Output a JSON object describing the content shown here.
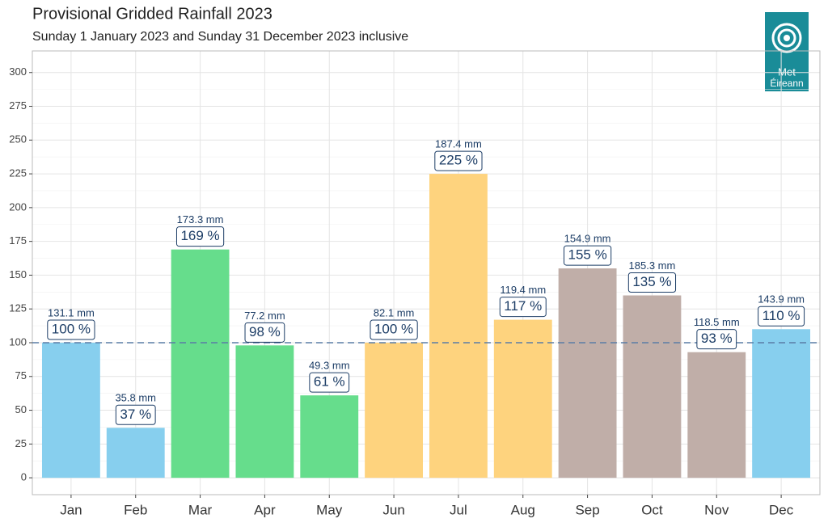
{
  "chart_data": {
    "type": "bar",
    "title": "Provisional Gridded Rainfall 2023",
    "subtitle": "Sunday 1 January 2023 and Sunday 31 December 2023 inclusive",
    "categories": [
      "Jan",
      "Feb",
      "Mar",
      "Apr",
      "May",
      "Jun",
      "Jul",
      "Aug",
      "Sep",
      "Oct",
      "Nov",
      "Dec"
    ],
    "values": [
      100,
      37,
      169,
      98,
      61,
      100,
      225,
      117,
      155,
      135,
      93,
      110
    ],
    "value_labels": [
      "100 %",
      "37 %",
      "169 %",
      "98 %",
      "61 %",
      "100 %",
      "225 %",
      "117 %",
      "155 %",
      "135 %",
      "93 %",
      "110 %"
    ],
    "rainfall_values": [
      131.1,
      35.8,
      173.3,
      77.2,
      49.3,
      82.1,
      187.4,
      119.4,
      154.9,
      185.3,
      118.5,
      143.9
    ],
    "rainfall_labels": [
      "131.1 mm",
      "35.8 mm",
      "173.3 mm",
      "77.2 mm",
      "49.3 mm",
      "82.1 mm",
      "187.4 mm",
      "119.4 mm",
      "154.9 mm",
      "185.3 mm",
      "118.5 mm",
      "143.9 mm"
    ],
    "colors": [
      "#87cfee",
      "#87cfee",
      "#66dd8c",
      "#66dd8c",
      "#66dd8c",
      "#fed37e",
      "#fed37e",
      "#fed37e",
      "#c0aea8",
      "#c0aea8",
      "#c0aea8",
      "#87cfee"
    ],
    "reference_line": 100,
    "ylim": [
      -12.5,
      316
    ],
    "yticks": [
      0,
      25,
      50,
      75,
      100,
      125,
      150,
      175,
      200,
      225,
      250,
      275,
      300
    ],
    "grid": true,
    "logo_lines": [
      "Met",
      "Éireann"
    ]
  }
}
